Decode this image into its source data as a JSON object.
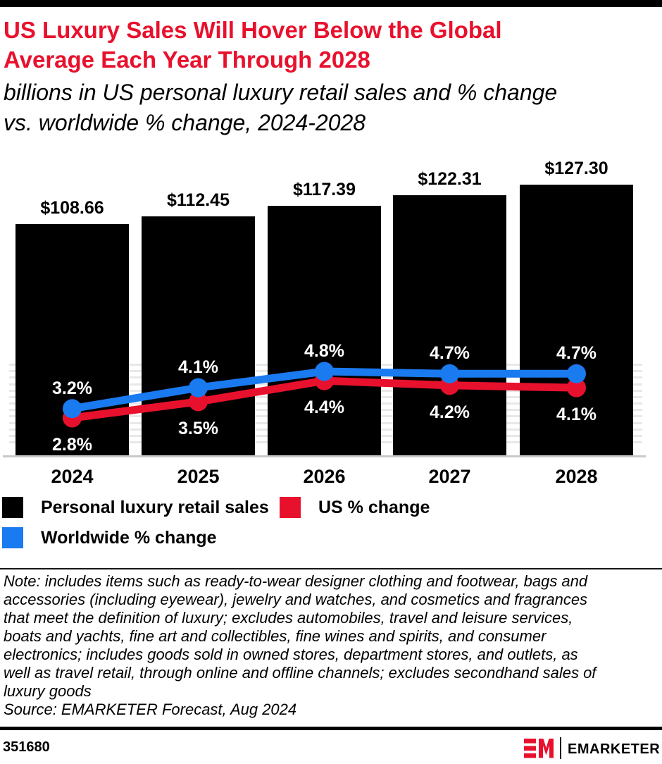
{
  "header": {
    "title_lines": [
      "US Luxury Sales Will Hover Below the Global",
      "Average Each Year Through 2028"
    ],
    "title_color": "#e8112d",
    "subtitle_lines": [
      "billions in US personal luxury retail sales and % change",
      "vs. worldwide % change, 2024-2028"
    ]
  },
  "chart_data": {
    "type": "bar",
    "subtype": "bars-with-two-line-series",
    "title": "US Luxury Sales Will Hover Below the Global Average Each Year Through 2028",
    "subtitle": "billions in US personal luxury retail sales and % change vs. worldwide % change, 2024-2028",
    "categories": [
      "2024",
      "2025",
      "2026",
      "2027",
      "2028"
    ],
    "series": [
      {
        "name": "Personal luxury retail sales",
        "type": "bar",
        "unit": "billions USD",
        "color": "#000000",
        "values": [
          108.66,
          112.45,
          117.39,
          122.31,
          127.3
        ],
        "labels": [
          "$108.66",
          "$112.45",
          "$117.39",
          "$122.31",
          "$127.30"
        ]
      },
      {
        "name": "US % change",
        "type": "line",
        "unit": "%",
        "color": "#e8112d",
        "values": [
          2.8,
          3.5,
          4.4,
          4.2,
          4.1
        ],
        "labels": [
          "2.8%",
          "3.5%",
          "4.4%",
          "4.2%",
          "4.1%"
        ]
      },
      {
        "name": "Worldwide % change",
        "type": "line",
        "unit": "%",
        "color": "#1a7af0",
        "values": [
          3.2,
          4.1,
          4.8,
          4.7,
          4.7
        ],
        "labels": [
          "3.2%",
          "4.1%",
          "4.8%",
          "4.7%",
          "4.7%"
        ]
      }
    ],
    "bar_axis_min": 0,
    "legend_position": "bottom-left",
    "grid": "light minor gridlines visible between bars"
  },
  "legend": {
    "items": [
      {
        "label": "Personal luxury retail sales",
        "color": "#000000"
      },
      {
        "label": "US % change",
        "color": "#e8112d"
      },
      {
        "label": "Worldwide % change",
        "color": "#1a7af0"
      }
    ]
  },
  "note": {
    "lines": [
      "Note: includes items such as ready-to-wear designer clothing and footwear, bags and",
      "accessories (including eyewear), jewelry and watches, and cosmetics and fragrances",
      "that meet the definition of luxury; excludes automobiles, travel and leisure services,",
      "boats and yachts, fine art and collectibles, fine wines and spirits, and consumer",
      "electronics; includes goods sold in owned stores, department stores, and outlets, as",
      "well as travel retail, through online and offline channels; excludes secondhand sales of",
      "luxury goods"
    ],
    "source": "Source: EMARKETER Forecast, Aug 2024"
  },
  "footer": {
    "chart_id": "351680",
    "brand": "EMARKETER"
  }
}
